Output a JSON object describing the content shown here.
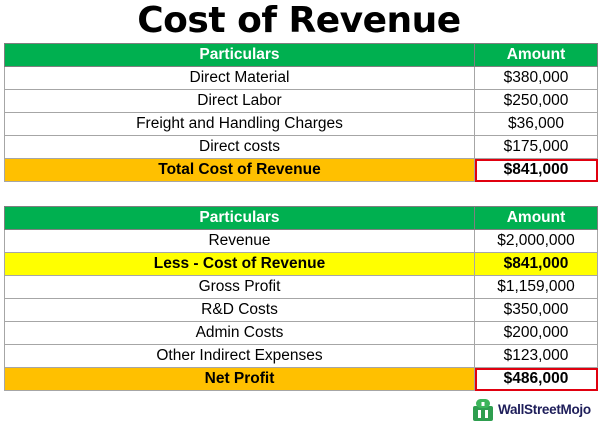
{
  "title": "Cost of Revenue",
  "table1": {
    "header": {
      "particulars": "Particulars",
      "amount": "Amount"
    },
    "rows": [
      {
        "label": "Direct Material",
        "amount": "$380,000"
      },
      {
        "label": "Direct Labor",
        "amount": "$250,000"
      },
      {
        "label": "Freight and Handling Charges",
        "amount": "$36,000"
      },
      {
        "label": "Direct costs",
        "amount": "$175,000"
      }
    ],
    "total": {
      "label": "Total Cost of Revenue",
      "amount": "$841,000"
    }
  },
  "table2": {
    "header": {
      "particulars": "Particulars",
      "amount": "Amount"
    },
    "revenue": {
      "label": "Revenue",
      "amount": "$2,000,000"
    },
    "less": {
      "label": "Less - Cost of Revenue",
      "amount": "$841,000"
    },
    "rows": [
      {
        "label": "Gross Profit",
        "amount": "$1,159,000"
      },
      {
        "label": "R&D Costs",
        "amount": "$350,000"
      },
      {
        "label": "Admin Costs",
        "amount": "$200,000"
      },
      {
        "label": "Other Indirect Expenses",
        "amount": "$123,000"
      }
    ],
    "total": {
      "label": "Net Profit",
      "amount": "$486,000"
    }
  },
  "logo": {
    "text": "WallStreetMojo",
    "icon": "wallstreetmojo-logo-icon"
  },
  "colors": {
    "header_bg": "#00b050",
    "total_bg": "#ffc000",
    "less_bg": "#ffff00",
    "highlight_border": "#e0000f"
  }
}
